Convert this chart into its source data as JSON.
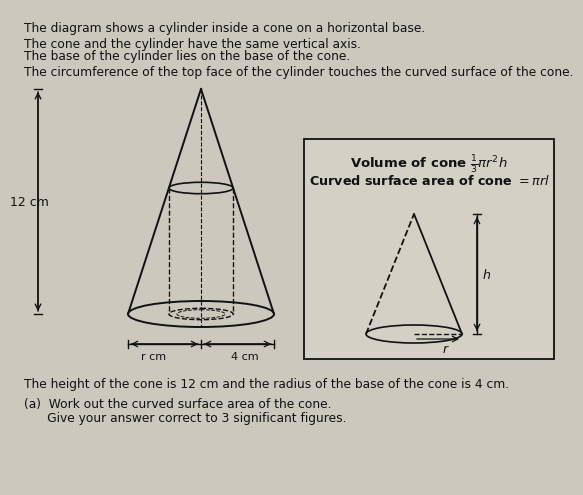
{
  "bg_color": "#ccc8be",
  "text_color": "#111111",
  "line1": "The diagram shows a cylinder inside a cone on a horizontal base.",
  "line2a": "The cone and the cylinder have the same vertical axis.",
  "line2b": "The base of the cylinder lies on the base of the cone.",
  "line3": "The circumference of the top face of the cylinder touches the curved surface of the cone.",
  "label_12cm": "12 cm",
  "label_rcm": "r cm",
  "label_4cm": "4 cm",
  "bottom_text1": "The height of the cone is 12 cm and the radius of the base of the cone is 4 cm.",
  "bottom_text2a": "(a)  Work out the curved surface area of the cone.",
  "bottom_text2b": "      Give your answer correct to 3 significant figures."
}
